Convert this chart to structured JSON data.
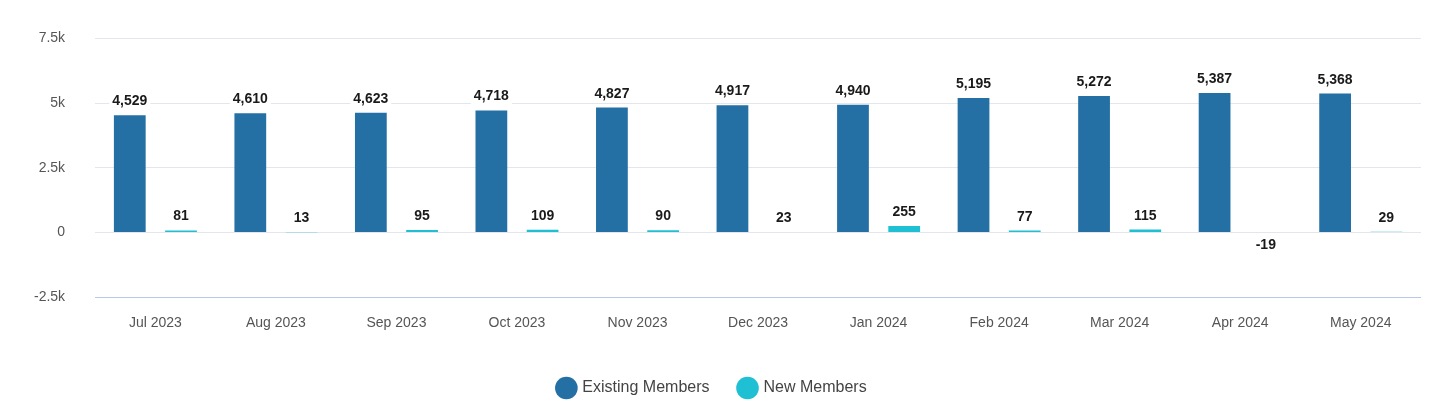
{
  "chart_data": {
    "type": "bar",
    "categories": [
      "Jul 2023",
      "Aug 2023",
      "Sep 2023",
      "Oct 2023",
      "Nov 2023",
      "Dec 2023",
      "Jan 2024",
      "Feb 2024",
      "Mar 2024",
      "Apr 2024",
      "May 2024"
    ],
    "series": [
      {
        "name": "Existing Members",
        "color": "#246fa4",
        "values": [
          4529,
          4610,
          4623,
          4718,
          4827,
          4917,
          4940,
          5195,
          5272,
          5387,
          5368
        ],
        "value_labels": [
          "4,529",
          "4,610",
          "4,623",
          "4,718",
          "4,827",
          "4,917",
          "4,940",
          "5,195",
          "5,272",
          "5,387",
          "5,368"
        ]
      },
      {
        "name": "New Members",
        "color": "#1fbfd4",
        "values": [
          81,
          13,
          95,
          109,
          90,
          23,
          255,
          77,
          115,
          -19,
          29
        ],
        "value_labels": [
          "81",
          "13",
          "95",
          "109",
          "90",
          "23",
          "255",
          "77",
          "115",
          "-19",
          "29"
        ]
      }
    ],
    "ylim": [
      -2500,
      7500
    ],
    "yticks": [
      {
        "value": -2500,
        "label": "-2.5k"
      },
      0,
      {
        "value": 2500,
        "label": "2.5k"
      },
      {
        "value": 5000,
        "label": "5k"
      },
      {
        "value": 7500,
        "label": "7.5k"
      }
    ],
    "grid": "y",
    "legend": "bottom"
  }
}
